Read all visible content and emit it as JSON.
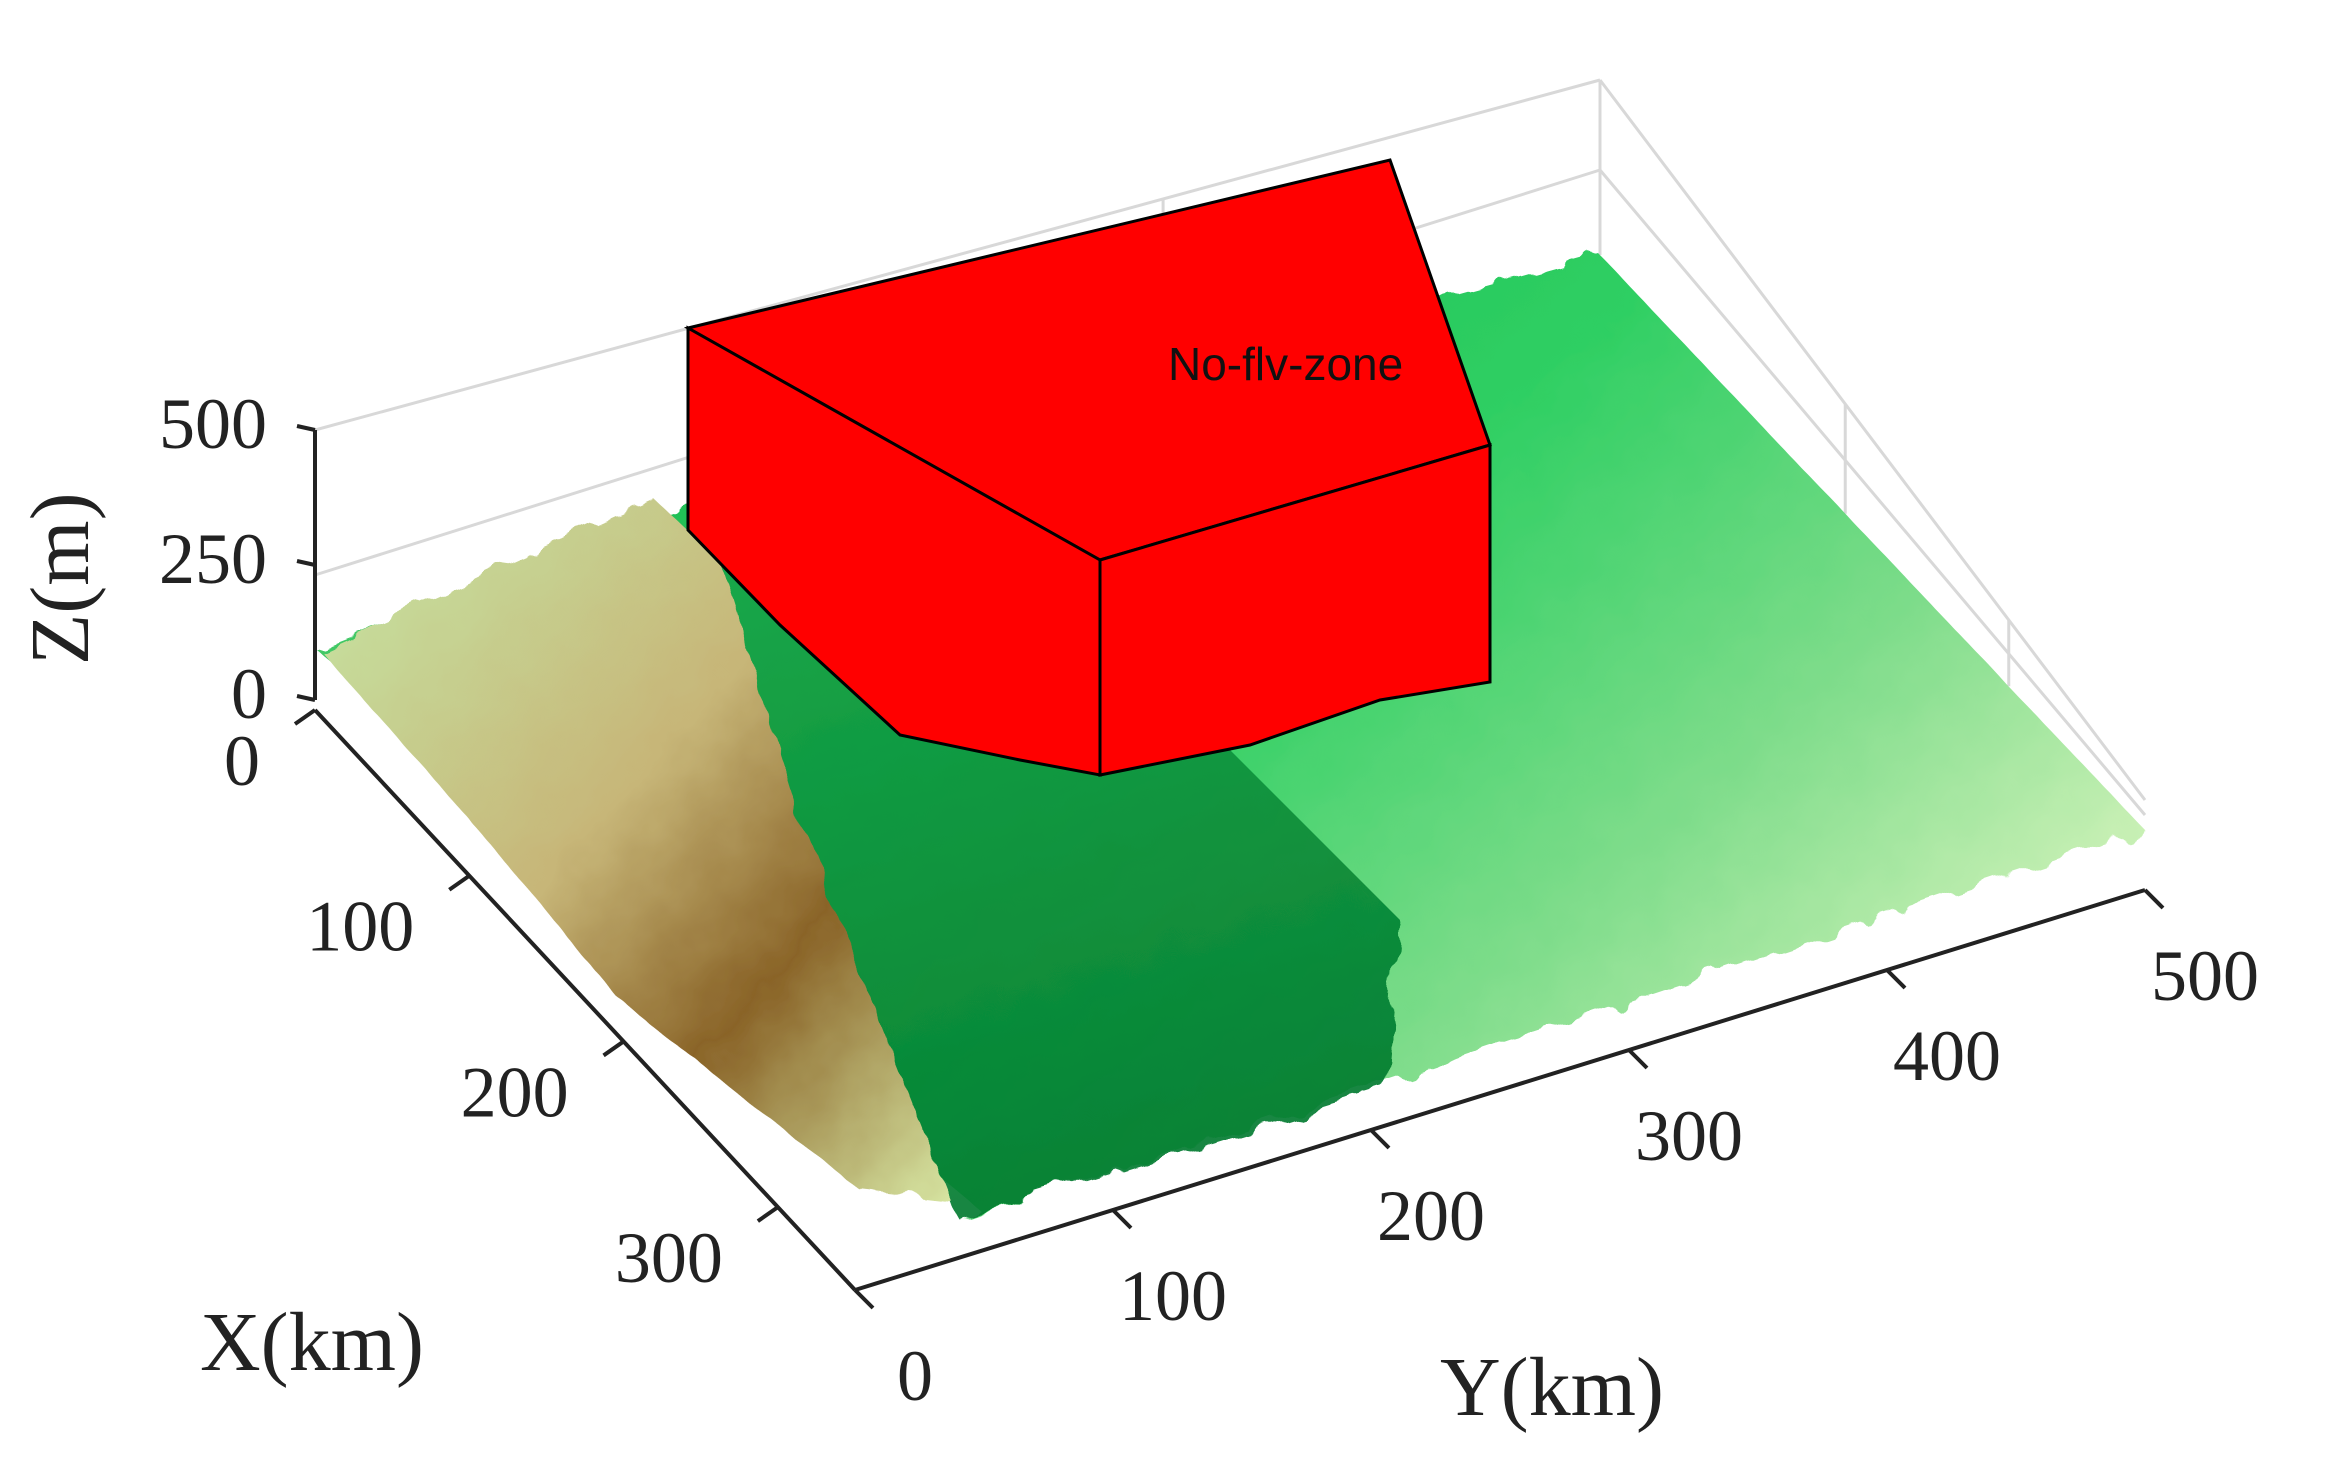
{
  "chart_data": {
    "type": "surface",
    "title": "",
    "x_axis": {
      "label": "X(km)",
      "ticks": [
        "0",
        "100",
        "200",
        "300"
      ],
      "range": [
        0,
        350
      ]
    },
    "y_axis": {
      "label": "Y(km)",
      "ticks": [
        "0",
        "100",
        "200",
        "300",
        "400",
        "500"
      ],
      "range": [
        0,
        500
      ]
    },
    "z_axis": {
      "label": "Z(m)",
      "ticks": [
        "0",
        "250",
        "500"
      ],
      "range": [
        0,
        500
      ]
    },
    "grid": true,
    "colormap": [
      "#007a2e",
      "#00b84a",
      "#5fd67a",
      "#c9f0b2",
      "#b8a060",
      "#7a5a20"
    ],
    "obstacles": [
      {
        "name": "No-fly-zone",
        "label": "No-flv-zone",
        "color": "#ff0000"
      }
    ]
  }
}
